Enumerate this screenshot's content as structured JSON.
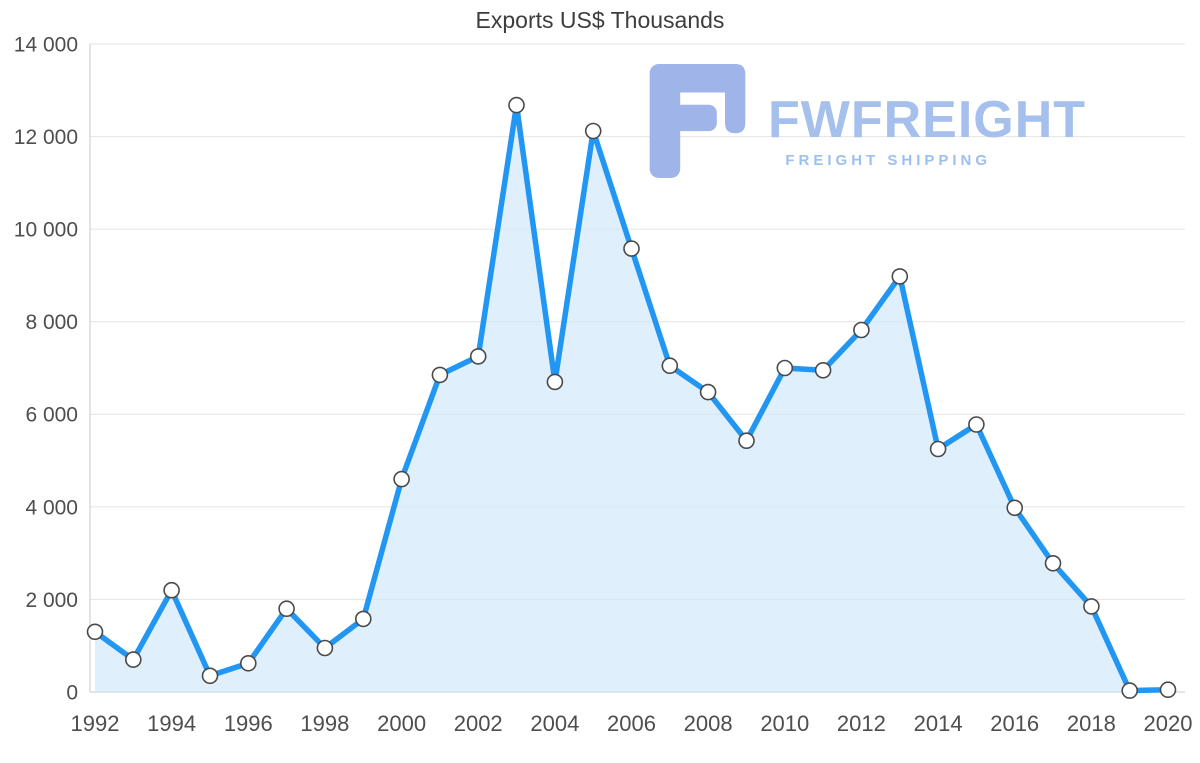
{
  "title": "Exports US$ Thousands",
  "logo": {
    "name": "FWFREIGHT",
    "subtitle": "FREIGHT SHIPPING"
  },
  "colors": {
    "line": "#2196f3",
    "area": "#cfe6fa",
    "area_opacity": 0.65,
    "marker_fill": "#ffffff",
    "marker_stroke": "#4a4a4a",
    "grid": "#e4e4e4",
    "axis": "#c8c8c8",
    "tick_text": "#4e4e4e",
    "title_text": "#3d3d3d",
    "logo_text": "#a6c0ed",
    "logo_subtitle": "#9cc0ef",
    "logo_icon": "#9fb5ea"
  },
  "chart_data": {
    "type": "area",
    "title": "Exports US$ Thousands",
    "xlabel": "",
    "ylabel": "",
    "x": [
      1992,
      1993,
      1994,
      1995,
      1996,
      1997,
      1998,
      1999,
      2000,
      2001,
      2002,
      2003,
      2004,
      2005,
      2006,
      2007,
      2008,
      2009,
      2010,
      2011,
      2012,
      2013,
      2014,
      2015,
      2016,
      2017,
      2018,
      2019,
      2020
    ],
    "values": [
      1300,
      700,
      2200,
      350,
      620,
      1800,
      950,
      1580,
      4600,
      6850,
      7250,
      12680,
      6700,
      12120,
      9580,
      7050,
      6480,
      5430,
      7000,
      6950,
      7820,
      8980,
      5250,
      5780,
      3980,
      2780,
      1850,
      30,
      50
    ],
    "ylim": [
      0,
      14000
    ],
    "ytick_step": 2000,
    "xtick_step": 2,
    "yticks": [
      "0",
      "2 000",
      "4 000",
      "6 000",
      "8 000",
      "10 000",
      "12 000",
      "14 000"
    ],
    "xticks": [
      "1992",
      "1994",
      "1996",
      "1998",
      "2000",
      "2002",
      "2004",
      "2006",
      "2008",
      "2010",
      "2012",
      "2014",
      "2016",
      "2018",
      "2020"
    ],
    "grid": true,
    "legend": false,
    "marker": "circle-open"
  }
}
